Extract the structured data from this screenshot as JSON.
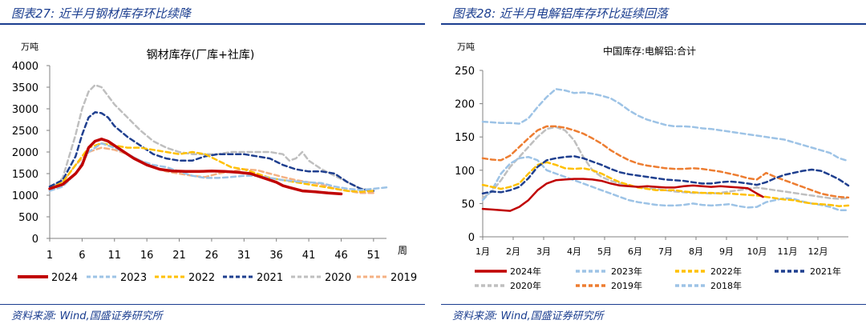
{
  "panels": [
    {
      "title": "图表27:  近半月钢材库存环比续降",
      "source": "资料来源:  Wind,国盛证券研究所"
    },
    {
      "title": "图表28:  近半月电解铝库存环比延续回落",
      "source": "资料来源:  Wind,国盛证券研究所"
    }
  ],
  "chart_data": [
    {
      "type": "line",
      "title": "钢材库存(厂库+社库)",
      "ylabel": "万吨",
      "xlabel": "周",
      "ylim": [
        0,
        4000
      ],
      "yticks": [
        "0",
        "500",
        "1000",
        "1500",
        "2000",
        "2500",
        "3000",
        "3500",
        "4000"
      ],
      "xlim": [
        1,
        53
      ],
      "xticks": [
        "1",
        "6",
        "11",
        "16",
        "21",
        "26",
        "31",
        "36",
        "41",
        "46",
        "51"
      ],
      "legend_position": "bottom",
      "series": [
        {
          "name": "2024",
          "color": "#c00000",
          "style": "solid",
          "width": 3.5,
          "x": [
            1,
            3,
            5,
            6,
            7,
            8,
            9,
            10,
            11,
            12,
            14,
            16,
            18,
            20,
            22,
            24,
            26,
            28,
            30,
            32,
            34,
            36,
            37,
            38,
            40,
            42,
            44,
            46
          ],
          "y": [
            1150,
            1250,
            1500,
            1700,
            2100,
            2250,
            2300,
            2250,
            2150,
            2050,
            1850,
            1700,
            1600,
            1560,
            1550,
            1550,
            1560,
            1550,
            1530,
            1500,
            1400,
            1300,
            1220,
            1180,
            1100,
            1080,
            1050,
            1030
          ]
        },
        {
          "name": "2023",
          "color": "#9dc3e6",
          "style": "dashed",
          "width": 2.5,
          "x": [
            1,
            3,
            5,
            7,
            9,
            11,
            13,
            15,
            17,
            19,
            21,
            23,
            25,
            27,
            29,
            31,
            33,
            35,
            37,
            39,
            41,
            43,
            45,
            47,
            49,
            51,
            53
          ],
          "y": [
            1100,
            1200,
            1500,
            2000,
            2200,
            2100,
            1950,
            1800,
            1700,
            1650,
            1550,
            1450,
            1400,
            1400,
            1420,
            1450,
            1450,
            1400,
            1350,
            1320,
            1300,
            1280,
            1200,
            1150,
            1120,
            1150,
            1180
          ]
        },
        {
          "name": "2022",
          "color": "#ffc000",
          "style": "dashed",
          "width": 2.5,
          "x": [
            1,
            3,
            5,
            7,
            9,
            11,
            13,
            15,
            17,
            19,
            21,
            23,
            25,
            27,
            29,
            31,
            33,
            35,
            37,
            39,
            41,
            43,
            45,
            47,
            49,
            51
          ],
          "y": [
            1150,
            1300,
            1700,
            2100,
            2200,
            2150,
            2100,
            2100,
            2050,
            2000,
            1950,
            2000,
            1950,
            1800,
            1650,
            1600,
            1500,
            1400,
            1350,
            1300,
            1250,
            1200,
            1150,
            1100,
            1080,
            1100
          ]
        },
        {
          "name": "2021",
          "color": "#1f3f8f",
          "style": "dashed",
          "width": 2.5,
          "x": [
            1,
            3,
            5,
            6,
            7,
            8,
            9,
            10,
            11,
            13,
            15,
            17,
            19,
            21,
            23,
            25,
            27,
            29,
            31,
            33,
            35,
            37,
            39,
            41,
            43,
            45,
            47,
            49,
            51
          ],
          "y": [
            1200,
            1350,
            1900,
            2400,
            2800,
            2920,
            2900,
            2800,
            2600,
            2350,
            2150,
            1950,
            1850,
            1800,
            1800,
            1900,
            1950,
            1950,
            1950,
            1900,
            1850,
            1700,
            1600,
            1550,
            1550,
            1500,
            1300,
            1150,
            1100
          ]
        },
        {
          "name": "2020",
          "color": "#bfbfbf",
          "style": "dashed",
          "width": 2.5,
          "x": [
            1,
            3,
            5,
            6,
            7,
            8,
            9,
            10,
            11,
            13,
            15,
            17,
            19,
            21,
            23,
            25,
            27,
            29,
            31,
            33,
            35,
            37,
            38,
            39,
            40,
            41,
            43,
            45,
            47,
            49,
            51
          ],
          "y": [
            1100,
            1400,
            2400,
            3000,
            3400,
            3550,
            3500,
            3300,
            3100,
            2800,
            2500,
            2250,
            2100,
            2000,
            1950,
            1950,
            1950,
            2000,
            2000,
            2000,
            2000,
            1950,
            1800,
            1850,
            2000,
            1800,
            1600,
            1450,
            1300,
            1150,
            1100
          ]
        },
        {
          "name": "2019",
          "color": "#f4b183",
          "style": "dashed",
          "width": 2.5,
          "x": [
            1,
            3,
            5,
            7,
            9,
            11,
            13,
            15,
            17,
            19,
            21,
            23,
            25,
            27,
            29,
            31,
            33,
            35,
            37,
            39,
            41,
            43,
            45,
            47,
            49,
            51
          ],
          "y": [
            1100,
            1300,
            1700,
            2000,
            2100,
            2050,
            1950,
            1800,
            1650,
            1550,
            1500,
            1450,
            1420,
            1500,
            1550,
            1600,
            1580,
            1500,
            1420,
            1350,
            1300,
            1250,
            1150,
            1100,
            1050,
            1050
          ]
        }
      ]
    },
    {
      "type": "line",
      "title": "中国库存:电解铝:合计",
      "ylabel": "万吨",
      "xlabel": "",
      "ylim": [
        0,
        250
      ],
      "yticks": [
        "0",
        "50",
        "100",
        "150",
        "200",
        "250"
      ],
      "xlim": [
        1,
        13
      ],
      "xticks": [
        "1月",
        "2月",
        "3月",
        "4月",
        "5月",
        "6月",
        "7月",
        "8月",
        "9月",
        "10月",
        "11月",
        "12月"
      ],
      "legend_position": "bottom",
      "series": [
        {
          "name": "2024年",
          "color": "#c00000",
          "style": "solid",
          "width": 2.5,
          "x": [
            1.0,
            1.3,
            1.6,
            1.9,
            2.2,
            2.5,
            2.8,
            3.1,
            3.4,
            3.7,
            4.0,
            4.3,
            4.6,
            4.9,
            5.2,
            5.5,
            5.8,
            6.1,
            6.4,
            6.7,
            7.0,
            7.3,
            7.6,
            7.9,
            8.2,
            8.5,
            8.8,
            9.1,
            9.4,
            9.7,
            10.0,
            10.2
          ],
          "y": [
            42,
            41,
            40,
            39,
            45,
            55,
            70,
            80,
            85,
            86,
            87,
            87,
            86,
            84,
            80,
            77,
            76,
            75,
            76,
            75,
            74,
            74,
            76,
            77,
            76,
            75,
            76,
            75,
            74,
            73,
            65,
            60
          ]
        },
        {
          "name": "2023年",
          "color": "#9dc3e6",
          "style": "dashed",
          "width": 2.5,
          "x": [
            1.0,
            1.3,
            1.6,
            1.9,
            2.2,
            2.5,
            2.8,
            3.1,
            3.4,
            3.7,
            4.0,
            4.3,
            4.6,
            4.9,
            5.2,
            5.5,
            5.8,
            6.1,
            6.4,
            6.7,
            7.0,
            7.3,
            7.6,
            7.9,
            8.2,
            8.5,
            8.8,
            9.1,
            9.4,
            9.7,
            10.0,
            10.3,
            10.6,
            10.9,
            11.2,
            11.5,
            11.8,
            12.1,
            12.4,
            12.7,
            13.0
          ],
          "y": [
            55,
            70,
            95,
            110,
            118,
            120,
            115,
            100,
            95,
            90,
            85,
            80,
            75,
            70,
            65,
            60,
            55,
            52,
            50,
            48,
            47,
            47,
            48,
            50,
            48,
            47,
            48,
            49,
            46,
            44,
            45,
            52,
            55,
            58,
            57,
            53,
            50,
            48,
            45,
            40,
            40
          ]
        },
        {
          "name": "2022年",
          "color": "#ffc000",
          "style": "dashed",
          "width": 2.5,
          "x": [
            1.0,
            1.3,
            1.6,
            1.9,
            2.2,
            2.5,
            2.8,
            3.1,
            3.4,
            3.7,
            4.0,
            4.3,
            4.6,
            4.9,
            5.2,
            5.5,
            5.8,
            6.1,
            6.4,
            6.7,
            7.0,
            7.3,
            7.6,
            7.9,
            8.2,
            8.5,
            8.8,
            9.1,
            9.4,
            9.7,
            10.0,
            10.3,
            10.6,
            10.9,
            11.2,
            11.5,
            11.8,
            12.1,
            12.4,
            12.7,
            13.0
          ],
          "y": [
            78,
            75,
            72,
            75,
            80,
            95,
            108,
            112,
            108,
            103,
            102,
            103,
            100,
            95,
            88,
            82,
            78,
            74,
            72,
            70,
            70,
            70,
            68,
            67,
            66,
            66,
            65,
            65,
            64,
            63,
            62,
            60,
            58,
            56,
            55,
            52,
            50,
            49,
            48,
            46,
            47
          ]
        },
        {
          "name": "2021年",
          "color": "#1f3f8f",
          "style": "dashed",
          "width": 2.5,
          "x": [
            1.0,
            1.3,
            1.6,
            1.9,
            2.2,
            2.5,
            2.8,
            3.1,
            3.4,
            3.7,
            4.0,
            4.3,
            4.6,
            4.9,
            5.2,
            5.5,
            5.8,
            6.1,
            6.4,
            6.7,
            7.0,
            7.3,
            7.6,
            7.9,
            8.2,
            8.5,
            8.8,
            9.1,
            9.4,
            9.7,
            10.0,
            10.3,
            10.6,
            10.9,
            11.2,
            11.5,
            11.8,
            12.1,
            12.4,
            12.7,
            13.0
          ],
          "y": [
            65,
            68,
            67,
            70,
            75,
            88,
            105,
            115,
            118,
            120,
            121,
            118,
            113,
            108,
            102,
            97,
            94,
            92,
            90,
            88,
            86,
            85,
            84,
            82,
            80,
            80,
            82,
            83,
            82,
            80,
            78,
            82,
            88,
            93,
            96,
            99,
            101,
            99,
            93,
            86,
            77
          ]
        },
        {
          "name": "2020年",
          "color": "#bfbfbf",
          "style": "dashed",
          "width": 2.5,
          "x": [
            1.0,
            1.3,
            1.6,
            1.9,
            2.2,
            2.5,
            2.8,
            3.1,
            3.4,
            3.7,
            4.0,
            4.3,
            4.6,
            4.9,
            5.2,
            5.5,
            5.8,
            6.1,
            6.4,
            6.7,
            7.0,
            7.3,
            7.6,
            7.9,
            8.2,
            8.5,
            8.8,
            9.1,
            9.4,
            9.7,
            10.0,
            10.3,
            10.6,
            10.9,
            11.2,
            11.5,
            11.8,
            12.1,
            12.4,
            12.7,
            13.0
          ],
          "y": [
            58,
            68,
            85,
            105,
            120,
            135,
            150,
            162,
            165,
            160,
            145,
            120,
            100,
            90,
            84,
            80,
            77,
            75,
            73,
            72,
            70,
            68,
            67,
            66,
            66,
            65,
            66,
            68,
            70,
            72,
            74,
            72,
            70,
            68,
            66,
            64,
            62,
            60,
            58,
            57,
            58
          ]
        },
        {
          "name": "2019年",
          "color": "#ed7d31",
          "style": "dashed",
          "width": 2.5,
          "x": [
            1.0,
            1.3,
            1.6,
            1.9,
            2.2,
            2.5,
            2.8,
            3.1,
            3.4,
            3.7,
            4.0,
            4.3,
            4.6,
            4.9,
            5.2,
            5.5,
            5.8,
            6.1,
            6.4,
            6.7,
            7.0,
            7.3,
            7.6,
            7.9,
            8.2,
            8.5,
            8.8,
            9.1,
            9.4,
            9.7,
            10.0,
            10.3,
            10.6,
            10.9,
            11.2,
            11.5,
            11.8,
            12.1,
            12.4,
            12.7,
            13.0
          ],
          "y": [
            118,
            116,
            115,
            122,
            135,
            148,
            160,
            166,
            166,
            164,
            160,
            155,
            148,
            140,
            130,
            122,
            115,
            110,
            107,
            105,
            103,
            102,
            102,
            103,
            102,
            100,
            98,
            95,
            92,
            88,
            86,
            96,
            90,
            85,
            80,
            75,
            70,
            65,
            62,
            60,
            59
          ]
        },
        {
          "name": "2018年",
          "color": "#9dc3e6",
          "style": "dashed",
          "width": 2.5,
          "x": [
            1.0,
            1.3,
            1.6,
            1.9,
            2.2,
            2.5,
            2.8,
            3.1,
            3.4,
            3.7,
            4.0,
            4.3,
            4.6,
            4.9,
            5.2,
            5.5,
            5.8,
            6.1,
            6.4,
            6.7,
            7.0,
            7.3,
            7.6,
            7.9,
            8.2,
            8.5,
            8.8,
            9.1,
            9.4,
            9.7,
            10.0,
            10.3,
            10.6,
            10.9,
            11.2,
            11.5,
            11.8,
            12.1,
            12.4,
            12.7,
            13.0
          ],
          "y": [
            173,
            172,
            171,
            171,
            170,
            178,
            195,
            210,
            222,
            220,
            216,
            217,
            215,
            212,
            208,
            200,
            190,
            182,
            176,
            172,
            168,
            166,
            166,
            165,
            163,
            162,
            160,
            158,
            156,
            154,
            152,
            150,
            148,
            146,
            142,
            138,
            134,
            130,
            126,
            118,
            114
          ]
        }
      ]
    }
  ]
}
